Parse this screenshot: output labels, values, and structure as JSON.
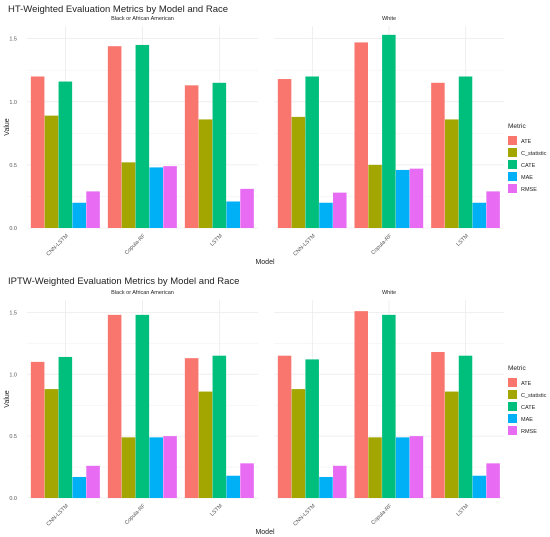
{
  "metrics_legend": {
    "title": "Metric",
    "items": [
      "ATE",
      "C_statistic",
      "CATE",
      "MAE",
      "RMSE"
    ]
  },
  "colors": {
    "ATE": "#F8766D",
    "C_statistic": "#A3A500",
    "CATE": "#00BF7D",
    "MAE": "#00B0F6",
    "RMSE": "#E76BF3"
  },
  "chart_data": [
    {
      "type": "bar",
      "title": "HT-Weighted Evaluation Metrics by Model and Race",
      "xlabel": "Model",
      "ylabel": "Value",
      "ylim": [
        0,
        1.6
      ],
      "yticks": [
        "0.0",
        "0.5",
        "1.0",
        "1.5"
      ],
      "panels": [
        {
          "strip": "Black or African American",
          "categories": [
            "CNN-LSTM",
            "Copula-RF",
            "LSTM"
          ],
          "series": [
            {
              "name": "ATE",
              "values": [
                1.2,
                1.44,
                1.13
              ]
            },
            {
              "name": "C_statistic",
              "values": [
                0.89,
                0.52,
                0.86
              ]
            },
            {
              "name": "CATE",
              "values": [
                1.16,
                1.45,
                1.15
              ]
            },
            {
              "name": "MAE",
              "values": [
                0.2,
                0.48,
                0.21
              ]
            },
            {
              "name": "RMSE",
              "values": [
                0.29,
                0.49,
                0.31
              ]
            }
          ]
        },
        {
          "strip": "White",
          "categories": [
            "CNN-LSTM",
            "Copula-RF",
            "LSTM"
          ],
          "series": [
            {
              "name": "ATE",
              "values": [
                1.18,
                1.47,
                1.15
              ]
            },
            {
              "name": "C_statistic",
              "values": [
                0.88,
                0.5,
                0.86
              ]
            },
            {
              "name": "CATE",
              "values": [
                1.2,
                1.53,
                1.2
              ]
            },
            {
              "name": "MAE",
              "values": [
                0.2,
                0.46,
                0.2
              ]
            },
            {
              "name": "RMSE",
              "values": [
                0.28,
                0.47,
                0.29
              ]
            }
          ]
        }
      ]
    },
    {
      "type": "bar",
      "title": "IPTW-Weighted Evaluation Metrics by Model and Race",
      "xlabel": "Model",
      "ylabel": "Value",
      "ylim": [
        0,
        1.6
      ],
      "yticks": [
        "0.0",
        "0.5",
        "1.0",
        "1.5"
      ],
      "panels": [
        {
          "strip": "Black or African American",
          "categories": [
            "CNN-LSTM",
            "Copula-RF",
            "LSTM"
          ],
          "series": [
            {
              "name": "ATE",
              "values": [
                1.1,
                1.48,
                1.13
              ]
            },
            {
              "name": "C_statistic",
              "values": [
                0.88,
                0.49,
                0.86
              ]
            },
            {
              "name": "CATE",
              "values": [
                1.14,
                1.48,
                1.15
              ]
            },
            {
              "name": "MAE",
              "values": [
                0.17,
                0.49,
                0.18
              ]
            },
            {
              "name": "RMSE",
              "values": [
                0.26,
                0.5,
                0.28
              ]
            }
          ]
        },
        {
          "strip": "White",
          "categories": [
            "CNN-LSTM",
            "Copula-RF",
            "LSTM"
          ],
          "series": [
            {
              "name": "ATE",
              "values": [
                1.15,
                1.51,
                1.18
              ]
            },
            {
              "name": "C_statistic",
              "values": [
                0.88,
                0.49,
                0.86
              ]
            },
            {
              "name": "CATE",
              "values": [
                1.12,
                1.48,
                1.15
              ]
            },
            {
              "name": "MAE",
              "values": [
                0.17,
                0.49,
                0.18
              ]
            },
            {
              "name": "RMSE",
              "values": [
                0.26,
                0.5,
                0.28
              ]
            }
          ]
        }
      ]
    }
  ]
}
